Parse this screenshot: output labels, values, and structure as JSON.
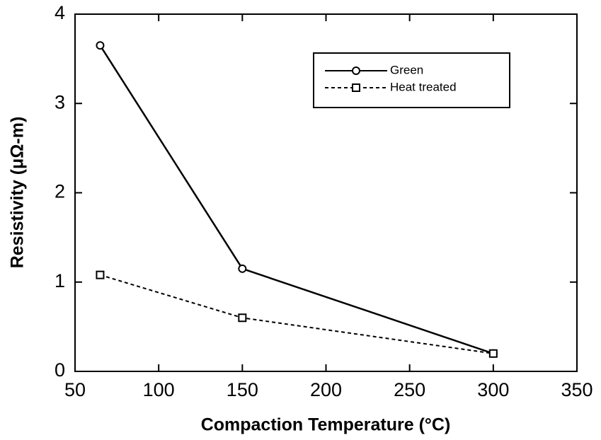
{
  "chart_data": {
    "type": "line",
    "x_label": "Compaction Temperature (°C)",
    "y_label": "Resistivity (μΩ-m)",
    "series": [
      {
        "name": "Green",
        "color": "#000000",
        "marker": "circle",
        "dashed": false,
        "x": [
          65,
          150,
          300
        ],
        "values": [
          3.65,
          1.15,
          0.2
        ]
      },
      {
        "name": "Heat treated",
        "color": "#000000",
        "marker": "square",
        "dashed": true,
        "x": [
          65,
          150,
          300
        ],
        "values": [
          1.08,
          0.6,
          0.2
        ]
      }
    ],
    "xlim": [
      50,
      350
    ],
    "xticks": [
      50,
      100,
      150,
      200,
      250,
      300,
      350
    ],
    "ylim": [
      0,
      4
    ],
    "yticks": [
      0,
      1,
      2,
      3,
      4
    ],
    "grid": false,
    "legend": "upper right"
  }
}
